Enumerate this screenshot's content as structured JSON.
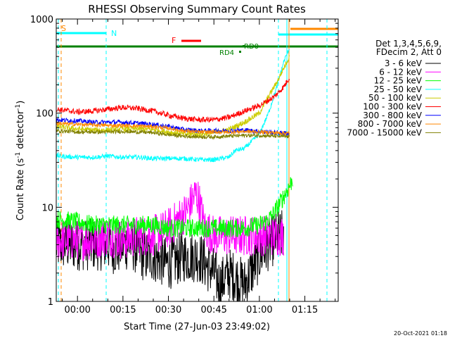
{
  "chart_data": {
    "type": "line",
    "title": "RHESSI Observing Summary Count Rates",
    "xlabel": "Start Time (27-Jun-03 23:49:02)",
    "ylabel_main": "Count Rate (s",
    "ylabel_sup1": "-1",
    "ylabel_mid": " detector",
    "ylabel_sup2": "-1",
    "ylabel_end": ")",
    "y_scale": "log",
    "ylim": [
      1,
      1000
    ],
    "xlim_minutes": [
      -7,
      86
    ],
    "y_ticks": [
      {
        "value": 1,
        "label": "1"
      },
      {
        "value": 10,
        "label": "10"
      },
      {
        "value": 100,
        "label": "100"
      },
      {
        "value": 1000,
        "label": "1000"
      }
    ],
    "x_ticks": [
      {
        "minute": 0,
        "label": "00:00"
      },
      {
        "minute": 15,
        "label": "00:15"
      },
      {
        "minute": 30,
        "label": "00:30"
      },
      {
        "minute": 45,
        "label": "00:45"
      },
      {
        "minute": 60,
        "label": "01:00"
      },
      {
        "minute": 75,
        "label": "01:15"
      }
    ],
    "legend_header": [
      "Det 1,3,4,5,6,9,",
      "FDecim 2, Att 0"
    ],
    "series": [
      {
        "name": "3 - 6 keV",
        "color": "#000000",
        "x": [
          -7,
          0,
          10,
          13,
          15,
          18,
          22,
          25,
          30,
          35,
          40,
          45,
          47,
          50,
          55,
          60,
          63,
          66,
          68
        ],
        "y": [
          4,
          4,
          4,
          3.5,
          4,
          4,
          3,
          3,
          2.5,
          3,
          3,
          2,
          1.5,
          2,
          1.5,
          3,
          4,
          5,
          5
        ]
      },
      {
        "name": "6 - 12 keV",
        "color": "#ff00ff",
        "x": [
          -7,
          0,
          5,
          10,
          15,
          20,
          25,
          30,
          36,
          38,
          39,
          40,
          42,
          45,
          50,
          55,
          60,
          65,
          68
        ],
        "y": [
          4.5,
          4.5,
          4.5,
          5,
          4.5,
          5,
          5,
          6,
          9,
          12,
          14,
          12,
          6,
          5,
          5,
          5,
          5,
          5,
          5
        ]
      },
      {
        "name": "12 - 25 keV",
        "color": "#00ff00",
        "x": [
          -7,
          0,
          5,
          10,
          15,
          20,
          25,
          30,
          35,
          40,
          45,
          50,
          55,
          60,
          62,
          64,
          66,
          68,
          70,
          71
        ],
        "y": [
          7.5,
          7,
          6.5,
          6.5,
          6.5,
          6.5,
          6.5,
          6,
          6,
          6,
          6,
          6,
          6,
          6.5,
          7,
          8,
          10,
          13,
          17,
          20
        ]
      },
      {
        "name": "25 - 50 keV",
        "color": "#00ffff",
        "x": [
          -7,
          0,
          5,
          10,
          15,
          20,
          25,
          30,
          35,
          40,
          45,
          50,
          52,
          55,
          60,
          63,
          66,
          68,
          70
        ],
        "y": [
          35,
          34,
          34,
          35,
          34,
          34,
          33,
          33,
          33,
          32,
          32,
          34,
          40,
          42,
          60,
          100,
          200,
          350,
          500
        ]
      },
      {
        "name": "50 - 100 keV",
        "color": "#cccc00",
        "x": [
          -7,
          0,
          5,
          10,
          15,
          20,
          25,
          30,
          35,
          40,
          45,
          50,
          55,
          60,
          63,
          66,
          68,
          70
        ],
        "y": [
          72,
          68,
          66,
          66,
          68,
          68,
          67,
          63,
          60,
          60,
          62,
          67,
          80,
          100,
          150,
          220,
          300,
          400
        ]
      },
      {
        "name": "100 - 300 keV",
        "color": "#ff0000",
        "x": [
          -7,
          0,
          5,
          10,
          15,
          20,
          25,
          30,
          35,
          40,
          45,
          50,
          55,
          60,
          65,
          68,
          70
        ],
        "y": [
          110,
          103,
          105,
          110,
          115,
          112,
          105,
          95,
          88,
          85,
          85,
          90,
          105,
          120,
          150,
          190,
          240
        ]
      },
      {
        "name": "300 - 800 keV",
        "color": "#0000ff",
        "x": [
          -7,
          0,
          5,
          10,
          15,
          20,
          25,
          30,
          35,
          40,
          45,
          50,
          55,
          60,
          65,
          70
        ],
        "y": [
          85,
          83,
          80,
          80,
          80,
          78,
          76,
          72,
          67,
          65,
          65,
          65,
          66,
          64,
          62,
          61
        ]
      },
      {
        "name": "800 - 7000 keV",
        "color": "#ff8800",
        "x": [
          -7,
          0,
          5,
          10,
          15,
          20,
          25,
          30,
          35,
          40,
          45,
          50,
          55,
          60,
          65,
          70
        ],
        "y": [
          78,
          76,
          75,
          74,
          74,
          73,
          72,
          69,
          65,
          63,
          63,
          63,
          64,
          63,
          62,
          61
        ]
      },
      {
        "name": "7000 - 15000 keV",
        "color": "#808000",
        "x": [
          -7,
          0,
          5,
          10,
          15,
          20,
          25,
          30,
          35,
          40,
          45,
          50,
          55,
          60,
          65,
          70
        ],
        "y": [
          65,
          63,
          63,
          63,
          64,
          63,
          62,
          59,
          57,
          56,
          56,
          57,
          58,
          58,
          57,
          56
        ]
      }
    ],
    "annotations": [
      {
        "text": "S",
        "color": "#ff8800"
      },
      {
        "text": "N",
        "color": "#00ffff"
      },
      {
        "text": "F",
        "color": "#ff0000"
      },
      {
        "text": "RD0",
        "color": "#008000"
      },
      {
        "text": "RD4",
        "color": "#008000"
      }
    ],
    "legend_placement": "right",
    "timestamp": "20-Oct-2021 01:18"
  }
}
